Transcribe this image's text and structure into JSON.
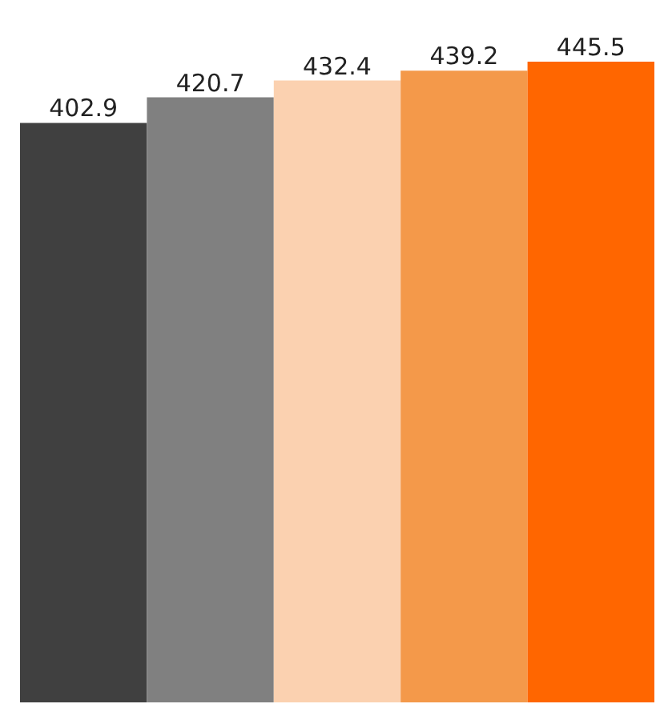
{
  "chart_data": {
    "type": "bar",
    "categories": [
      null,
      null,
      null,
      null,
      null
    ],
    "values": [
      402.9,
      420.7,
      432.4,
      439.2,
      445.5
    ],
    "colors": [
      "#404040",
      "#808080",
      "#fbd1b0",
      "#f4994a",
      "#ff6600"
    ],
    "data_labels": true
  }
}
